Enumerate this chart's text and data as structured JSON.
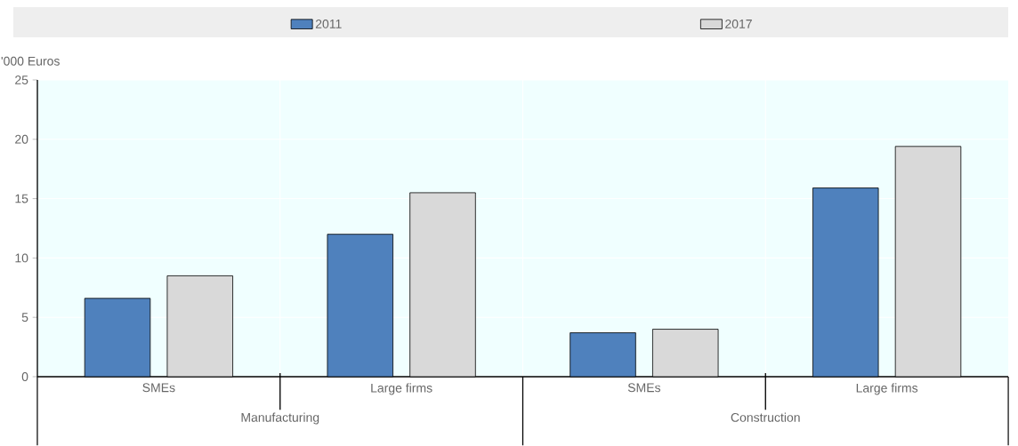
{
  "chart_data": {
    "type": "bar",
    "ylabel": "'000 Euros",
    "categories": [
      "SMEs",
      "Large firms",
      "SMEs",
      "Large firms"
    ],
    "series": [
      {
        "name": "2011",
        "color": "#4f81bd",
        "values": [
          6.6,
          12.0,
          3.7,
          15.9
        ]
      },
      {
        "name": "2017",
        "color": "#d9d9d9",
        "values": [
          8.5,
          15.5,
          4.0,
          19.4
        ]
      }
    ],
    "annotations": [
      "Manufacturing",
      "Construction"
    ],
    "ylim": [
      0,
      25
    ],
    "yticks": [
      0,
      5,
      10,
      15,
      20,
      25
    ],
    "grid": true,
    "legend": "top"
  }
}
